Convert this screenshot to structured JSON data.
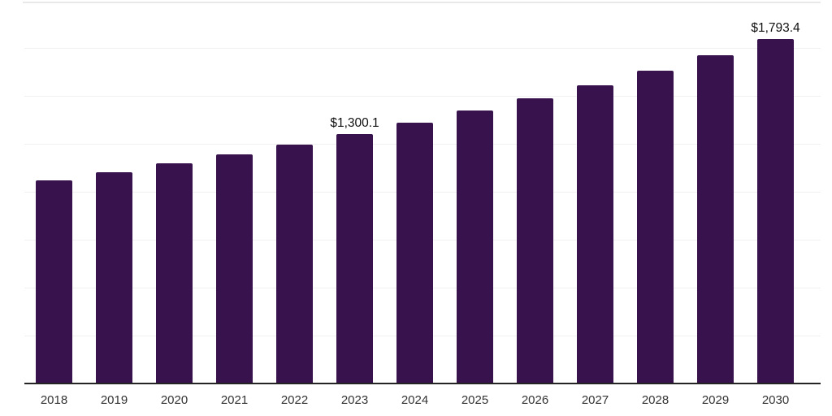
{
  "chart_data": {
    "type": "bar",
    "title": "",
    "xlabel": "",
    "ylabel": "",
    "categories": [
      "2018",
      "2019",
      "2020",
      "2021",
      "2022",
      "2023",
      "2024",
      "2025",
      "2026",
      "2027",
      "2028",
      "2029",
      "2030"
    ],
    "values": [
      1057,
      1099,
      1147,
      1194,
      1246,
      1300.1,
      1360,
      1424,
      1486,
      1555,
      1631,
      1712,
      1793.4
    ],
    "data_labels": [
      "",
      "",
      "",
      "",
      "",
      "$1,300.1",
      "",
      "",
      "",
      "",
      "",
      "",
      "$1,793.4"
    ],
    "ylim": [
      0,
      2000
    ],
    "gridline_interval": 250,
    "grid": "horizontal",
    "legend": "none",
    "colors": {
      "bar": "#37124d",
      "axis_line": "#242424",
      "tick_label": "#333333",
      "value_label": "#111111",
      "gridline": "#f1f1f1",
      "plot_top_border": "#e9e9e9",
      "background": "#ffffff"
    }
  }
}
